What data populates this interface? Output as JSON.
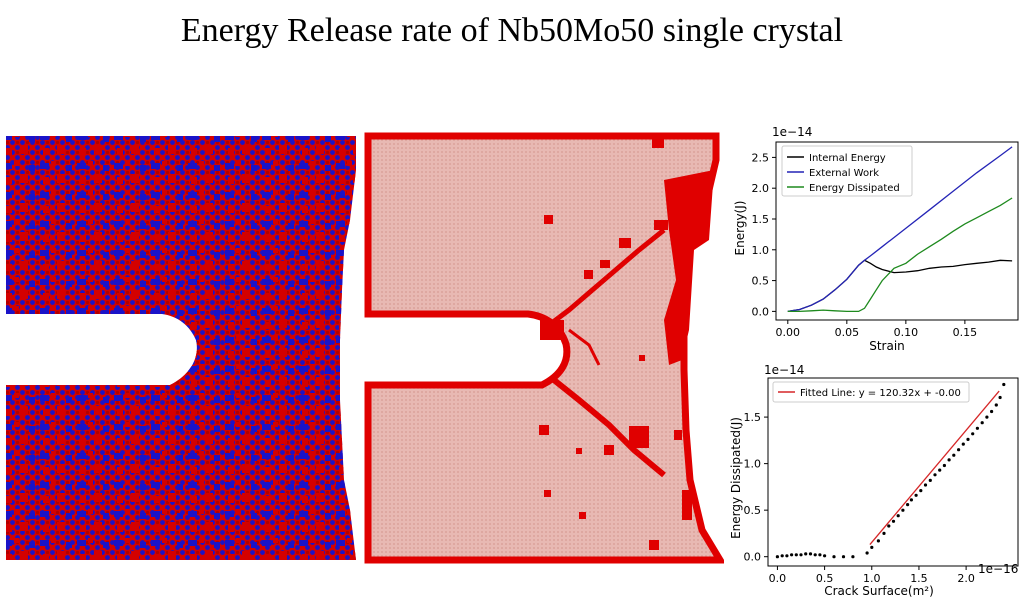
{
  "title": "Energy Release rate of Nb50Mo50 single crystal",
  "colors": {
    "nb": "#d40000",
    "mo": "#1a13c8",
    "bcc_matrix": "#e8b9b3",
    "defect": "#e00000",
    "internal": "#000000",
    "external": "#2424b6",
    "dissipated": "#1e8a1e",
    "fit": "#d62728",
    "points": "#000000"
  },
  "chart_data": [
    {
      "type": "line",
      "offset_label": "1e−14",
      "xlabel": "Strain",
      "ylabel": "Energy(J)",
      "xlim": [
        -0.01,
        0.195
      ],
      "ylim": [
        -0.14,
        2.75
      ],
      "xticks": [
        0.0,
        0.05,
        0.1,
        0.15
      ],
      "xtick_labels": [
        "0.00",
        "0.05",
        "0.10",
        "0.15"
      ],
      "yticks": [
        0.0,
        0.5,
        1.0,
        1.5,
        2.0,
        2.5
      ],
      "ytick_labels": [
        "0.0",
        "0.5",
        "1.0",
        "1.5",
        "2.0",
        "2.5"
      ],
      "legend_position": "top-left",
      "series": [
        {
          "name": "Internal Energy",
          "x": [
            0.0,
            0.01,
            0.02,
            0.03,
            0.04,
            0.05,
            0.06,
            0.065,
            0.07,
            0.075,
            0.08,
            0.09,
            0.1,
            0.11,
            0.12,
            0.13,
            0.14,
            0.15,
            0.16,
            0.17,
            0.18,
            0.19
          ],
          "y": [
            0.0,
            0.03,
            0.1,
            0.2,
            0.35,
            0.52,
            0.75,
            0.83,
            0.78,
            0.72,
            0.68,
            0.63,
            0.64,
            0.66,
            0.7,
            0.72,
            0.73,
            0.76,
            0.78,
            0.8,
            0.83,
            0.82
          ]
        },
        {
          "name": "External Work",
          "x": [
            0.0,
            0.01,
            0.02,
            0.03,
            0.04,
            0.05,
            0.06,
            0.065,
            0.07,
            0.08,
            0.1,
            0.12,
            0.14,
            0.16,
            0.18,
            0.19
          ],
          "y": [
            0.0,
            0.03,
            0.1,
            0.2,
            0.35,
            0.52,
            0.75,
            0.83,
            0.9,
            1.05,
            1.35,
            1.65,
            1.95,
            2.25,
            2.53,
            2.67
          ]
        },
        {
          "name": "Energy Dissipated",
          "x": [
            0.0,
            0.01,
            0.02,
            0.03,
            0.04,
            0.05,
            0.06,
            0.065,
            0.07,
            0.075,
            0.08,
            0.09,
            0.1,
            0.11,
            0.12,
            0.13,
            0.14,
            0.15,
            0.16,
            0.17,
            0.18,
            0.19
          ],
          "y": [
            0.0,
            0.0,
            0.01,
            0.02,
            0.01,
            0.0,
            0.0,
            0.05,
            0.2,
            0.35,
            0.5,
            0.7,
            0.78,
            0.93,
            1.05,
            1.17,
            1.3,
            1.42,
            1.52,
            1.62,
            1.72,
            1.84
          ]
        }
      ]
    },
    {
      "type": "scatter",
      "offset_label": "1e−14",
      "x_offset_label": "1e−16",
      "xlabel": "Crack Surface(m²)",
      "ylabel": "Energy Dissipated(J)",
      "xlim": [
        -0.1,
        2.55
      ],
      "ylim": [
        -0.1,
        1.92
      ],
      "xticks": [
        0.0,
        0.5,
        1.0,
        1.5,
        2.0
      ],
      "xtick_labels": [
        "0.0",
        "0.5",
        "1.0",
        "1.5",
        "2.0"
      ],
      "yticks": [
        0.0,
        0.5,
        1.0,
        1.5
      ],
      "ytick_labels": [
        "0.0",
        "0.5",
        "1.0",
        "1.5"
      ],
      "legend_position": "top-left",
      "fit": {
        "name": "Fitted Line: y = 120.32x + -0.00",
        "x": [
          0.98,
          2.35
        ],
        "y": [
          0.13,
          1.78
        ]
      },
      "points": {
        "x": [
          0.0,
          0.05,
          0.1,
          0.15,
          0.2,
          0.25,
          0.3,
          0.35,
          0.4,
          0.45,
          0.5,
          0.6,
          0.7,
          0.8,
          0.95,
          1.0,
          1.07,
          1.13,
          1.18,
          1.23,
          1.28,
          1.33,
          1.38,
          1.42,
          1.47,
          1.52,
          1.57,
          1.62,
          1.67,
          1.72,
          1.77,
          1.82,
          1.87,
          1.92,
          1.97,
          2.02,
          2.07,
          2.12,
          2.17,
          2.22,
          2.27,
          2.32,
          2.36,
          2.4
        ],
        "y": [
          0.0,
          0.01,
          0.01,
          0.02,
          0.02,
          0.02,
          0.03,
          0.03,
          0.02,
          0.02,
          0.01,
          0.0,
          0.0,
          0.0,
          0.04,
          0.1,
          0.17,
          0.25,
          0.33,
          0.38,
          0.44,
          0.5,
          0.56,
          0.61,
          0.66,
          0.71,
          0.77,
          0.82,
          0.88,
          0.93,
          0.98,
          1.04,
          1.09,
          1.15,
          1.21,
          1.26,
          1.32,
          1.38,
          1.44,
          1.5,
          1.56,
          1.63,
          1.71,
          1.85
        ]
      }
    }
  ]
}
